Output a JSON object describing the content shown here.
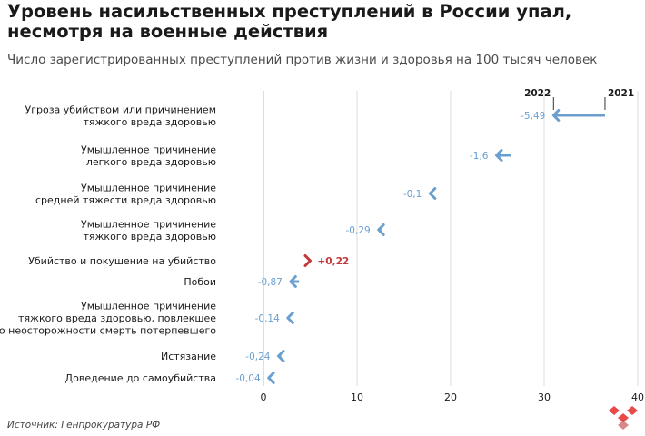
{
  "title": "Уровень насильственных преступлений в России упал, несмотря на военные действия",
  "subtitle": "Число зарегистрированных преступлений против жизни и здоровья на 100 тысяч человек",
  "source": "Источник: Генпрокуратура РФ",
  "colors": {
    "decrease": "#6a9fcf",
    "increase": "#c0393b",
    "grid": "#dedede",
    "zero": "#bdbdbd"
  },
  "chart_data": {
    "type": "arrow-dot",
    "xlim": [
      0,
      40
    ],
    "xticks": [
      0,
      10,
      20,
      30,
      40
    ],
    "legend": {
      "from": "2021",
      "to": "2022"
    },
    "rows": [
      {
        "lines": [
          "Угроза убийством или причинением",
          "тяжкого вреда здоровью"
        ],
        "v2021": 36.5,
        "v2022": 31.0,
        "label": "-5,49"
      },
      {
        "lines": [
          "Умышленное причинение",
          "легкого вреда здоровью"
        ],
        "v2021": 26.5,
        "v2022": 24.9,
        "label": "-1,6"
      },
      {
        "lines": [
          "Умышленное причинение",
          "средней тяжести вреда здоровью"
        ],
        "v2021": 17.9,
        "v2022": 17.8,
        "label": "-0,1"
      },
      {
        "lines": [
          "Умышленное причинение",
          "тяжкого вреда здоровью"
        ],
        "v2021": 12.6,
        "v2022": 12.3,
        "label": "-0,29"
      },
      {
        "lines": [
          "Убийство и покушение на убийство"
        ],
        "v2021": 4.8,
        "v2022": 5.0,
        "label": "+0,22"
      },
      {
        "lines": [
          "Побои"
        ],
        "v2021": 3.8,
        "v2022": 2.9,
        "label": "-0,87"
      },
      {
        "lines": [
          "Умышленное причинение",
          "тяжкого вреда здоровью, повлекшее",
          "по неосторожности смерть потерпевшего"
        ],
        "v2021": 2.7,
        "v2022": 2.6,
        "label": "-0,14"
      },
      {
        "lines": [
          "Истязание"
        ],
        "v2021": 1.9,
        "v2022": 1.6,
        "label": "-0,24"
      },
      {
        "lines": [
          "Доведение до самоубийства"
        ],
        "v2021": 0.6,
        "v2022": 0.55,
        "label": "-0,04"
      }
    ]
  }
}
